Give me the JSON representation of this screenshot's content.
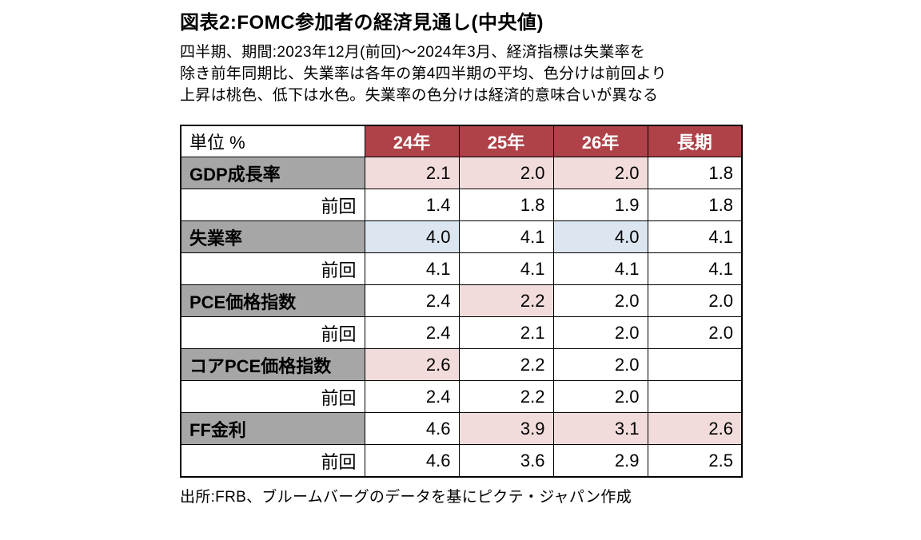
{
  "page": {
    "title": "図表2:FOMC参加者の経済見通し(中央値)",
    "subtitle_lines": [
      "四半期、期間:2023年12月(前回)〜2024年3月、経済指標は失業率を",
      "除き前年同期比、失業率は各年の第4四半期の平均、色分けは前回より",
      "上昇は桃色、低下は水色。失業率の色分けは経済的意味合いが異なる"
    ],
    "source": "出所:FRB、ブルームバーグのデータを基にピクテ・ジャパン作成"
  },
  "colors": {
    "header_bg": "#AF4248",
    "header_text": "#FFFFFF",
    "label_bg": "#A6A6A6",
    "pink": "#F2DCDB",
    "blue": "#DCE6F1",
    "white": "#FFFFFF",
    "border": "#000000"
  },
  "chart_data": {
    "type": "table",
    "title": "図表2:FOMC参加者の経済見通し(中央値)",
    "columns": [
      "単位 %",
      "24年",
      "25年",
      "26年",
      "長期"
    ],
    "rows": [
      {
        "label": "GDP成長率",
        "type": "category",
        "values": [
          "2.1",
          "2.0",
          "2.0",
          "1.8"
        ],
        "fills": [
          "pink",
          "pink",
          "pink",
          "white"
        ]
      },
      {
        "label": "前回",
        "type": "previous",
        "values": [
          "1.4",
          "1.8",
          "1.9",
          "1.8"
        ],
        "fills": [
          "white",
          "white",
          "white",
          "white"
        ]
      },
      {
        "label": "失業率",
        "type": "category",
        "values": [
          "4.0",
          "4.1",
          "4.0",
          "4.1"
        ],
        "fills": [
          "blue",
          "white",
          "blue",
          "white"
        ]
      },
      {
        "label": "前回",
        "type": "previous",
        "values": [
          "4.1",
          "4.1",
          "4.1",
          "4.1"
        ],
        "fills": [
          "white",
          "white",
          "white",
          "white"
        ]
      },
      {
        "label": "PCE価格指数",
        "type": "category",
        "values": [
          "2.4",
          "2.2",
          "2.0",
          "2.0"
        ],
        "fills": [
          "white",
          "pink",
          "white",
          "white"
        ]
      },
      {
        "label": "前回",
        "type": "previous",
        "values": [
          "2.4",
          "2.1",
          "2.0",
          "2.0"
        ],
        "fills": [
          "white",
          "white",
          "white",
          "white"
        ]
      },
      {
        "label": "コアPCE価格指数",
        "type": "category",
        "values": [
          "2.6",
          "2.2",
          "2.0",
          ""
        ],
        "fills": [
          "pink",
          "white",
          "white",
          "white"
        ]
      },
      {
        "label": "前回",
        "type": "previous",
        "values": [
          "2.4",
          "2.2",
          "2.0",
          ""
        ],
        "fills": [
          "white",
          "white",
          "white",
          "white"
        ]
      },
      {
        "label": "FF金利",
        "type": "category",
        "values": [
          "4.6",
          "3.9",
          "3.1",
          "2.6"
        ],
        "fills": [
          "white",
          "pink",
          "pink",
          "pink"
        ]
      },
      {
        "label": "前回",
        "type": "previous",
        "values": [
          "4.6",
          "3.6",
          "2.9",
          "2.5"
        ],
        "fills": [
          "white",
          "white",
          "white",
          "white"
        ]
      }
    ]
  }
}
